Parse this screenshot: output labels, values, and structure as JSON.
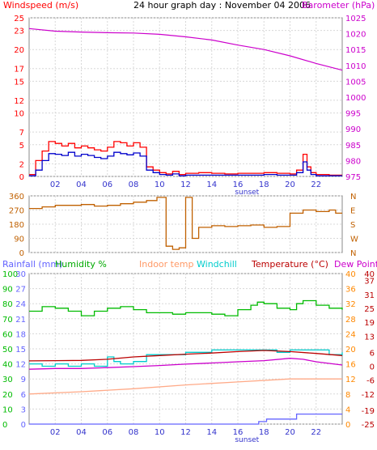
{
  "title": "24 hour graph day : November 04 2006",
  "colors": {
    "wind": "#ff0000",
    "gust": "#0000cc",
    "baro": "#cc00cc",
    "winddir": "#c06000",
    "rain": "#6464ff",
    "humidity": "#00bb00",
    "indoor": "#ffaa88",
    "windchill": "#00cccc",
    "temp": "#bb0000",
    "dew": "#cc00cc",
    "axis_blue": "#3333cc",
    "axis_orange": "#ff8800",
    "grid": "#d8d8d8"
  },
  "labels": {
    "windspeed": "Windspeed (m/s)",
    "barometer": "Barometer (hPa)",
    "rainfall": "Rainfall (mm)",
    "humidity": "Humidity %",
    "indoor": "Indoor temp",
    "windchill": "Windchill",
    "temperature": "Temperature (°C)",
    "dewpoint": "Dew Point",
    "sunset": "sunset"
  },
  "chart_data": [
    {
      "type": "line",
      "title": "24 hour graph day : November 04 2006",
      "x_ticks": [
        "02",
        "04",
        "06",
        "08",
        "10",
        "12",
        "14",
        "16",
        "18",
        "20",
        "22"
      ],
      "x_range_hours": [
        0,
        24
      ],
      "left_axis": {
        "label": "Windspeed (m/s)",
        "ticks": [
          0,
          2,
          5,
          7,
          10,
          12,
          15,
          17,
          20,
          23,
          25
        ],
        "range": [
          0,
          25
        ]
      },
      "right_axis": {
        "label": "Barometer (hPa)",
        "ticks": [
          975,
          980,
          985,
          990,
          995,
          1000,
          1005,
          1010,
          1015,
          1020,
          1025
        ],
        "range": [
          975,
          1025
        ]
      },
      "series": [
        {
          "name": "Windspeed",
          "color_key": "wind",
          "x": [
            0,
            0.5,
            1,
            1.5,
            2,
            2.5,
            3,
            3.5,
            4,
            4.5,
            5,
            5.5,
            6,
            6.5,
            7,
            7.5,
            8,
            8.5,
            9,
            9.5,
            10,
            10.5,
            11,
            11.5,
            12,
            13,
            14,
            15,
            16,
            17,
            18,
            19,
            20,
            20.5,
            21,
            21.3,
            21.6,
            22,
            23,
            24
          ],
          "y": [
            0.3,
            2.5,
            4,
            5.5,
            5.2,
            4.8,
            5.2,
            4.5,
            4.8,
            4.5,
            4.2,
            4,
            4.6,
            5.5,
            5.3,
            4.8,
            5.3,
            4.6,
            1.5,
            1,
            0.6,
            0.4,
            0.8,
            0.3,
            0.5,
            0.6,
            0.5,
            0.4,
            0.5,
            0.5,
            0.6,
            0.5,
            0.4,
            1,
            3.5,
            1.5,
            0.6,
            0.3,
            0.2,
            0.2
          ]
        },
        {
          "name": "Gust",
          "color_key": "gust",
          "x": [
            0,
            0.5,
            1,
            1.5,
            2,
            2.5,
            3,
            3.5,
            4,
            4.5,
            5,
            5.5,
            6,
            6.5,
            7,
            7.5,
            8,
            8.5,
            9,
            9.5,
            10,
            10.5,
            11,
            11.5,
            12,
            13,
            14,
            15,
            16,
            17,
            18,
            19,
            20,
            20.5,
            21,
            21.3,
            21.6,
            22,
            23,
            24
          ],
          "y": [
            0.1,
            1,
            2.5,
            3.6,
            3.5,
            3.3,
            3.8,
            3.2,
            3.5,
            3.3,
            3,
            2.8,
            3.2,
            3.8,
            3.6,
            3.4,
            3.7,
            3.2,
            1,
            0.6,
            0.3,
            0.2,
            0.4,
            0.1,
            0.2,
            0.2,
            0.2,
            0.2,
            0.2,
            0.2,
            0.3,
            0.2,
            0.2,
            0.6,
            2.3,
            1,
            0.3,
            0.1,
            0.1,
            0.1
          ]
        },
        {
          "name": "Barometer",
          "color_key": "baro",
          "axis": "right",
          "x": [
            0,
            2,
            4,
            6,
            8,
            10,
            12,
            14,
            16,
            18,
            20,
            22,
            24
          ],
          "y": [
            1021.6,
            1020.8,
            1020.5,
            1020.3,
            1020.2,
            1019.8,
            1019.0,
            1018.0,
            1016.4,
            1015.0,
            1013.0,
            1010.6,
            1008.5
          ]
        }
      ]
    },
    {
      "type": "line",
      "title": "",
      "left_axis": {
        "ticks": [
          0,
          90,
          180,
          270,
          360
        ],
        "range": [
          0,
          360
        ]
      },
      "right_axis": {
        "ticks": [
          "N",
          "W",
          "S",
          "E",
          "N"
        ]
      },
      "series": [
        {
          "name": "Wind direction",
          "color_key": "winddir",
          "x": [
            0,
            1,
            2,
            3,
            4,
            5,
            6,
            7,
            8,
            9,
            9.8,
            10.2,
            10.5,
            11,
            11.2,
            11.5,
            12,
            12.2,
            12.5,
            13,
            14,
            15,
            16,
            17,
            18,
            19,
            20,
            21,
            22,
            23,
            23.5,
            24
          ],
          "y": [
            280,
            290,
            300,
            300,
            305,
            295,
            300,
            310,
            320,
            330,
            350,
            350,
            40,
            20,
            20,
            30,
            350,
            350,
            90,
            160,
            170,
            165,
            170,
            175,
            160,
            165,
            250,
            270,
            260,
            270,
            250,
            250
          ]
        }
      ]
    },
    {
      "type": "line",
      "title": "",
      "axes": {
        "rainfall": {
          "label": "Rainfall (mm)",
          "ticks": [
            0,
            3,
            6,
            9,
            12,
            15,
            18,
            21,
            24,
            27,
            30
          ],
          "range": [
            0,
            30
          ]
        },
        "humidity": {
          "label": "Humidity %",
          "ticks": [
            0,
            10,
            20,
            30,
            40,
            50,
            60,
            70,
            80,
            90,
            100
          ],
          "range": [
            0,
            100
          ]
        },
        "indoor": {
          "label": "Indoor temp",
          "ticks": [
            0,
            4,
            8,
            12,
            16,
            20,
            24,
            28,
            32,
            36,
            40
          ],
          "range": [
            0,
            40
          ]
        },
        "temperature": {
          "label": "Temperature (°C)",
          "ticks": [
            -25,
            -19,
            -12,
            -6,
            0,
            6,
            13,
            19,
            25,
            31,
            37,
            40
          ],
          "range": [
            -25,
            40
          ]
        }
      },
      "series": [
        {
          "name": "Humidity %",
          "color_key": "humidity",
          "axis": "humidity",
          "x": [
            0,
            1,
            2,
            3,
            4,
            5,
            6,
            7,
            8,
            9,
            10,
            11,
            12,
            13,
            14,
            15,
            16,
            17,
            17.5,
            18,
            19,
            20,
            20.5,
            21,
            22,
            23,
            24
          ],
          "y": [
            75,
            78,
            77,
            75,
            72,
            75,
            77,
            78,
            76,
            74,
            74,
            73,
            74,
            74,
            73,
            72,
            76,
            79,
            81,
            80,
            77,
            76,
            80,
            82,
            79,
            77,
            76
          ]
        },
        {
          "name": "Indoor temp",
          "color_key": "indoor",
          "axis": "indoor",
          "x": [
            0,
            4,
            8,
            12,
            16,
            20,
            24
          ],
          "y": [
            8,
            8.6,
            9.4,
            10.4,
            11.2,
            12,
            12.0
          ]
        },
        {
          "name": "Windchill",
          "color_key": "windchill",
          "axis": "temperature",
          "x": [
            0,
            1,
            2,
            3,
            4,
            5,
            6,
            6.5,
            7,
            8,
            9,
            10,
            11,
            12,
            13,
            14,
            15,
            16,
            17,
            18,
            19,
            20,
            21,
            22,
            23,
            24
          ],
          "y": [
            1,
            0,
            1,
            0,
            1,
            0,
            4,
            2,
            1,
            2,
            5,
            5,
            5,
            6,
            6,
            7,
            7,
            7,
            7,
            7,
            6,
            7,
            7,
            7,
            5,
            6
          ]
        },
        {
          "name": "Temperature (°C)",
          "color_key": "temp",
          "axis": "temperature",
          "x": [
            0,
            2,
            4,
            6,
            8,
            10,
            12,
            14,
            16,
            18,
            20,
            22,
            24
          ],
          "y": [
            2.3,
            2.4,
            2.5,
            3,
            4,
            4.6,
            5.2,
            5.7,
            6.3,
            6.8,
            6.3,
            5.5,
            4.6
          ]
        },
        {
          "name": "Dew Point",
          "color_key": "dew",
          "axis": "temperature",
          "x": [
            0,
            2,
            4,
            6,
            8,
            10,
            12,
            14,
            16,
            18,
            20,
            21,
            22,
            24
          ],
          "y": [
            -1.3,
            -1,
            -1,
            -0.6,
            -0.2,
            0.3,
            0.9,
            1.4,
            1.9,
            2.4,
            3.4,
            3.0,
            1.9,
            0.5
          ]
        },
        {
          "name": "Rainfall (mm)",
          "color_key": "rain",
          "axis": "rainfall",
          "x": [
            0,
            16,
            17.3,
            17.6,
            18.2,
            18.5,
            19,
            20,
            20.5,
            21,
            24
          ],
          "y": [
            0,
            0,
            0,
            0.5,
            1,
            1,
            1,
            1,
            2,
            2,
            2
          ]
        }
      ]
    }
  ]
}
